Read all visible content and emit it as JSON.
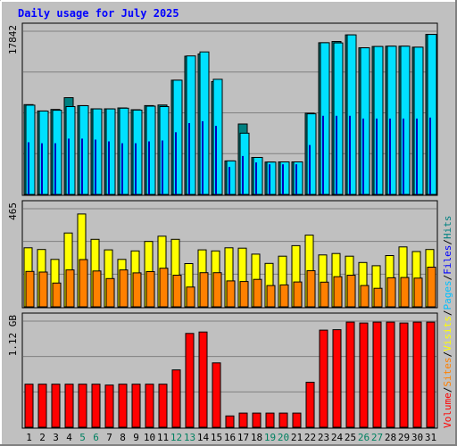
{
  "chart_data": {
    "type": "bar",
    "title": "Daily usage for July 2025",
    "categories": [
      "1",
      "2",
      "3",
      "4",
      "5",
      "6",
      "7",
      "8",
      "9",
      "10",
      "11",
      "12",
      "13",
      "14",
      "15",
      "16",
      "17",
      "18",
      "19",
      "20",
      "21",
      "22",
      "23",
      "24",
      "25",
      "26",
      "27",
      "28",
      "29",
      "30",
      "31"
    ],
    "weekend_days": [
      "5",
      "6",
      "12",
      "13",
      "19",
      "20",
      "26",
      "27"
    ],
    "panels": [
      {
        "id": "top",
        "max_label": "17842",
        "ymax": 17842,
        "series": [
          {
            "name": "Hits",
            "color": "#008080",
            "values": [
              9820,
              9130,
              9290,
              10580,
              9710,
              9360,
              9360,
              9460,
              9260,
              9710,
              9780,
              12490,
              15110,
              15360,
              12330,
              3670,
              7700,
              4050,
              3540,
              3560,
              3560,
              8880,
              16580,
              16720,
              17440,
              16030,
              16170,
              16200,
              16200,
              16100,
              17490
            ]
          },
          {
            "name": "Files",
            "color": "#00e0ff",
            "values": [
              9760,
              9120,
              9200,
              9600,
              9700,
              9350,
              9350,
              9430,
              9220,
              9650,
              9600,
              12490,
              15140,
              15580,
              12590,
              3670,
              6700,
              4050,
              3540,
              3560,
              3560,
              8810,
              16580,
              16560,
              17440,
              16030,
              16170,
              16200,
              16200,
              16100,
              17490
            ]
          },
          {
            "name": "Pages",
            "color": "#0000c0",
            "values": [
              5700,
              5600,
              5600,
              6100,
              6100,
              6000,
              5800,
              5600,
              5600,
              5800,
              5900,
              6800,
              7800,
              8000,
              7500,
              3000,
              4200,
              3500,
              3300,
              3300,
              3300,
              5400,
              8600,
              8600,
              8600,
              8300,
              8300,
              8300,
              8300,
              8300,
              8400
            ]
          }
        ]
      },
      {
        "id": "middle",
        "max_label": "465",
        "ymax": 465,
        "series": [
          {
            "name": "Visits",
            "color": "#ffff00",
            "values": [
              280,
              272,
              225,
              350,
              440,
              320,
              270,
              225,
              265,
              310,
              335,
              320,
              205,
              270,
              265,
              280,
              278,
              250,
              206,
              240,
              290,
              340,
              246,
              253,
              240,
              210,
              195,
              243,
              284,
              262,
              272
            ]
          },
          {
            "name": "Sites",
            "color": "#ff8000",
            "values": [
              168,
              165,
              113,
              175,
              224,
              170,
              134,
              175,
              161,
              167,
              183,
              150,
              94,
              162,
              162,
              123,
              120,
              130,
              101,
              104,
              118,
              171,
              117,
              143,
              150,
              101,
              88,
              138,
              139,
              136,
              188
            ]
          }
        ]
      },
      {
        "id": "bottom",
        "max_label": "1.12 GB",
        "ymax": 1.12,
        "series": [
          {
            "name": "Volume",
            "color": "#ff0000",
            "values": [
              0.455,
              0.455,
              0.455,
              0.455,
              0.455,
              0.455,
              0.445,
              0.455,
              0.455,
              0.455,
              0.455,
              0.605,
              0.99,
              1.005,
              0.68,
              0.12,
              0.15,
              0.15,
              0.15,
              0.15,
              0.15,
              0.475,
              1.025,
              1.03,
              1.11,
              1.1,
              1.11,
              1.11,
              1.1,
              1.11,
              1.11
            ]
          }
        ]
      }
    ],
    "legend": [
      {
        "label": "Volume",
        "color": "#ff0000"
      },
      {
        "label": "Sites",
        "color": "#ff8000"
      },
      {
        "label": "Visits",
        "color": "#ffff00"
      },
      {
        "label": "Pages",
        "color": "#00c0ff"
      },
      {
        "label": "Files",
        "color": "#0000ff"
      },
      {
        "label": "Hits",
        "color": "#008080"
      }
    ],
    "legend_separator": "/",
    "colors": {
      "background": "#c0c0c0",
      "grid": "#808080",
      "title": "#0000ff",
      "weekday_label": "#000000",
      "weekend_label": "#008060"
    },
    "grid": true,
    "legend_position": "right-vertical"
  }
}
